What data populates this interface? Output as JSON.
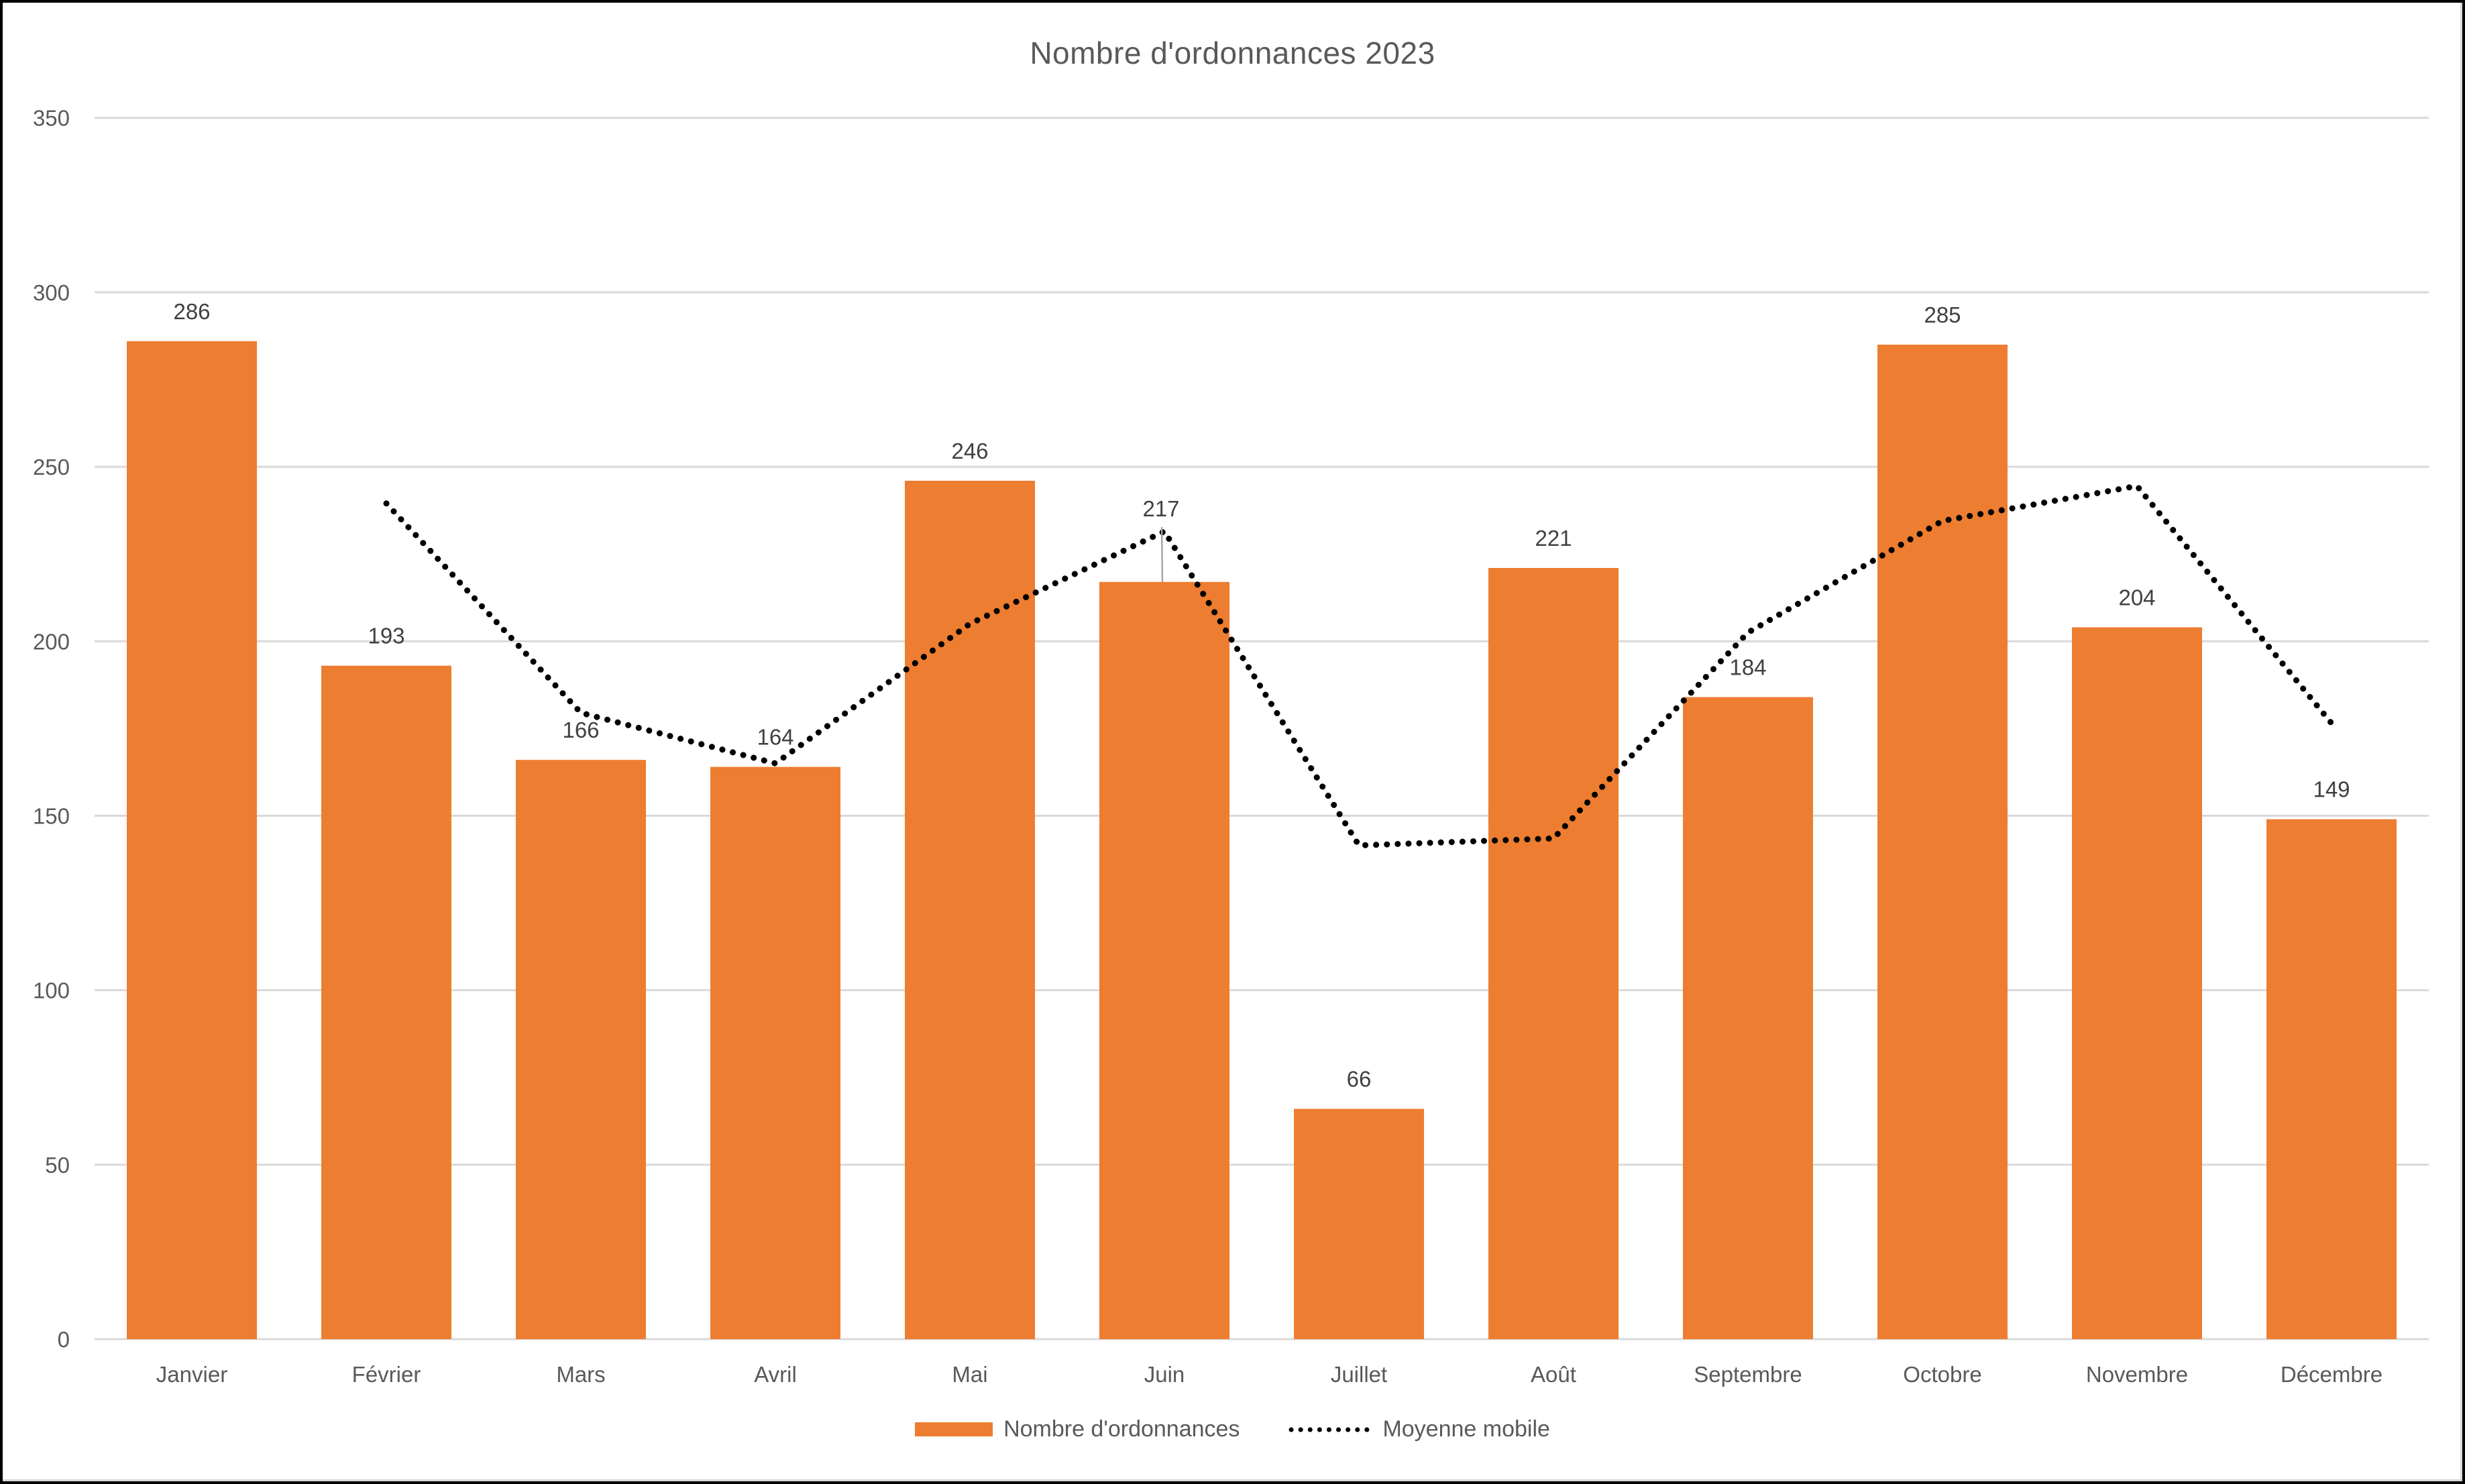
{
  "chart_data": {
    "type": "bar",
    "title": "Nombre d'ordonnances 2023",
    "categories": [
      "Janvier",
      "Février",
      "Mars",
      "Avril",
      "Mai",
      "Juin",
      "Juillet",
      "Août",
      "Septembre",
      "Octobre",
      "Novembre",
      "Décembre"
    ],
    "series": [
      {
        "name": "Nombre d'ordonnances",
        "type": "bar",
        "color": "#ED7D31",
        "values": [
          286,
          193,
          166,
          164,
          246,
          217,
          66,
          221,
          184,
          285,
          204,
          149
        ],
        "data_labels_visible": true
      },
      {
        "name": "Moyenne mobile",
        "type": "line",
        "line_style": "dotted",
        "color": "#000000",
        "values": [
          null,
          239.5,
          179.5,
          165,
          205,
          231.5,
          141.5,
          143.5,
          202.5,
          234.5,
          244.5,
          176.5
        ]
      }
    ],
    "ylim": [
      0,
      350
    ],
    "yticks": [
      0,
      50,
      100,
      150,
      200,
      250,
      300,
      350
    ],
    "grid": "horizontal",
    "legend_position": "bottom",
    "annotations": [
      {
        "category": "Juin",
        "value_label": "217",
        "note": "data label raised above dotted line with gray leader line to bar top"
      }
    ],
    "colors": {
      "bar": "#ED7D31",
      "gridline": "#D9D9D9",
      "axis_label": "#595959",
      "data_label": "#404040",
      "title": "#595959",
      "line": "#000000",
      "leader_line": "#A6A6A6"
    }
  },
  "legend": {
    "items": [
      {
        "label": "Nombre d'ordonnances",
        "swatch": "orange-bar"
      },
      {
        "label": "Moyenne mobile",
        "swatch": "black-dotted-line"
      }
    ]
  }
}
